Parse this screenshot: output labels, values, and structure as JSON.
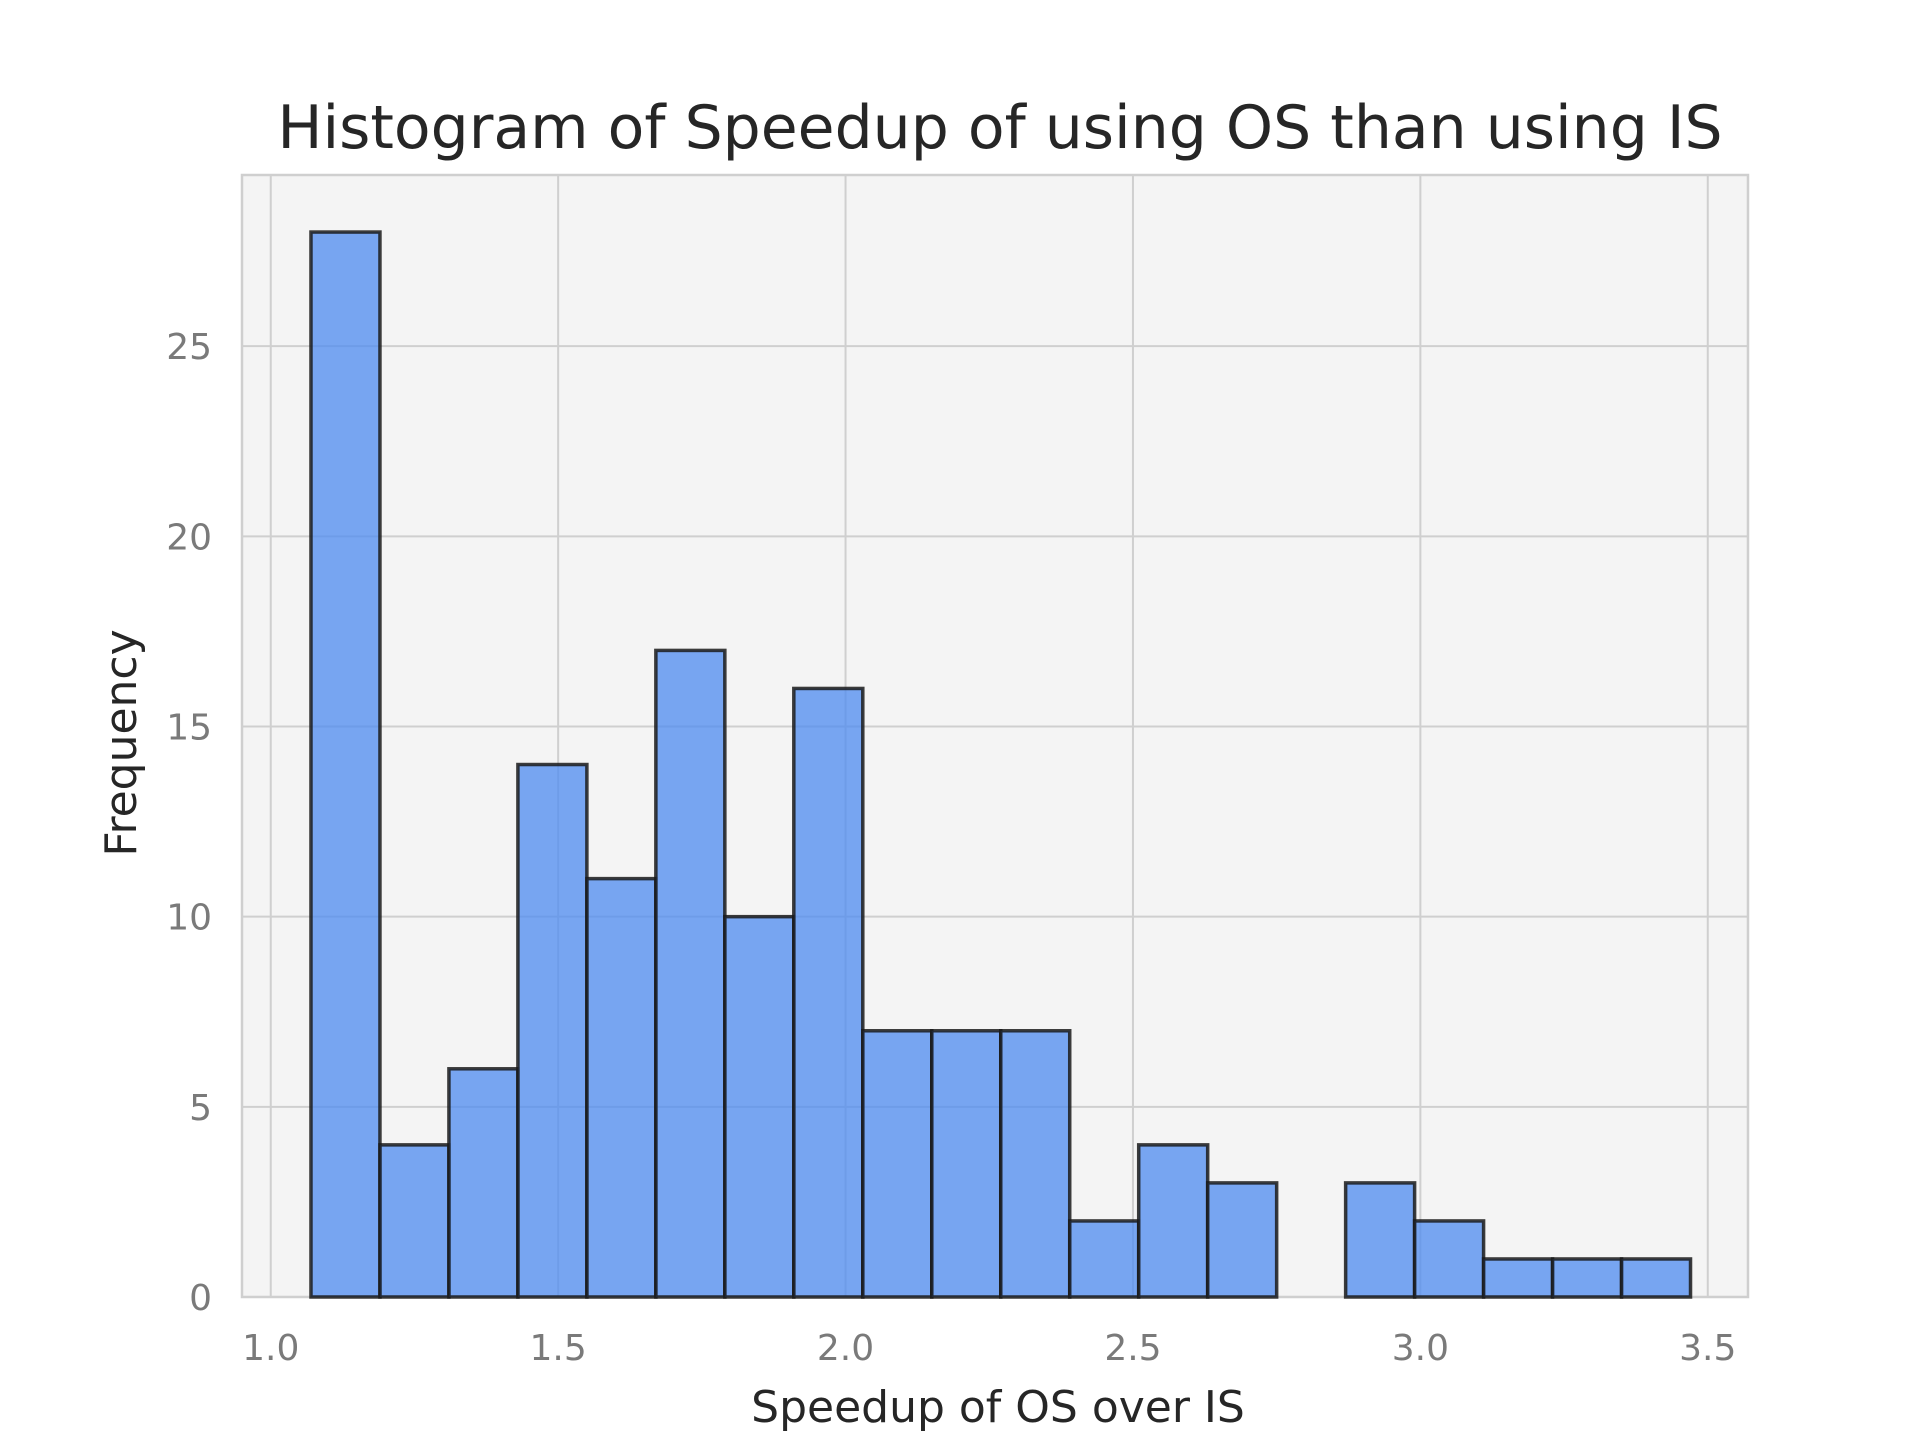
{
  "chart_data": {
    "type": "bar",
    "title": "Histogram of Speedup of using OS than using IS",
    "xlabel": "Speedup of OS over IS",
    "ylabel": "Frequency",
    "xlim": [
      0.95,
      3.57
    ],
    "ylim": [
      0,
      29.5
    ],
    "xticks": [
      {
        "value": 1.0,
        "label": "1.0"
      },
      {
        "value": 1.5,
        "label": "1.5"
      },
      {
        "value": 2.0,
        "label": "2.0"
      },
      {
        "value": 2.5,
        "label": "2.5"
      },
      {
        "value": 3.0,
        "label": "3.0"
      },
      {
        "value": 3.5,
        "label": "3.5"
      }
    ],
    "yticks": [
      {
        "value": 0,
        "label": "0"
      },
      {
        "value": 5,
        "label": "5"
      },
      {
        "value": 10,
        "label": "10"
      },
      {
        "value": 15,
        "label": "15"
      },
      {
        "value": 20,
        "label": "20"
      },
      {
        "value": 25,
        "label": "25"
      }
    ],
    "grid": true,
    "bin_edges": [
      1.07,
      1.19,
      1.31,
      1.43,
      1.55,
      1.67,
      1.79,
      1.91,
      2.03,
      2.15,
      2.27,
      2.39,
      2.51,
      2.63,
      2.75,
      2.87,
      2.99,
      3.11,
      3.23,
      3.35,
      3.47
    ],
    "values": [
      28,
      4,
      6,
      14,
      11,
      17,
      10,
      16,
      7,
      7,
      7,
      2,
      4,
      3,
      0,
      3,
      2,
      1,
      1,
      1
    ],
    "colors": {
      "bar_fill": "#4d8bf0",
      "bar_edge": "#1a1a1a",
      "plot_background": "#f4f4f4",
      "grid": "#cfcfcf"
    }
  }
}
